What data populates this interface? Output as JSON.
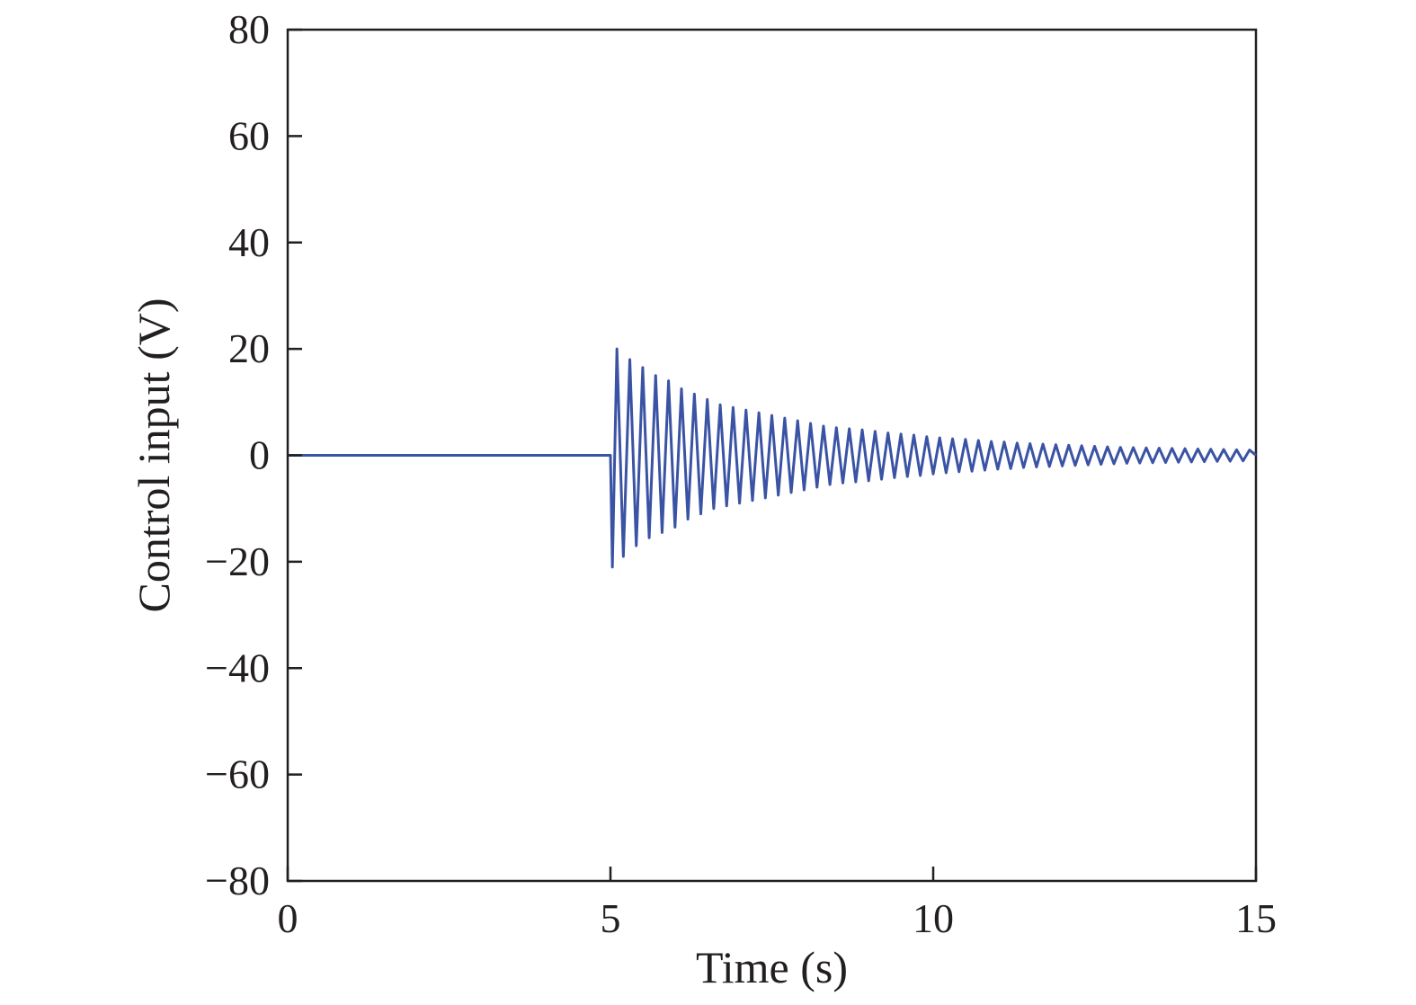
{
  "chart_data": {
    "type": "line",
    "xlabel": "Time (s)",
    "ylabel": "Control input (V)",
    "xlim": [
      0,
      15
    ],
    "ylim": [
      -80,
      80
    ],
    "xticks": [
      0,
      5,
      10,
      15
    ],
    "xtick_labels": [
      "0",
      "5",
      "10",
      "15"
    ],
    "yticks": [
      80,
      60,
      40,
      20,
      0,
      -20,
      -40,
      -60,
      -80
    ],
    "ytick_labels": [
      "80",
      "60",
      "40",
      "20",
      "0",
      "−20",
      "−40",
      "−60",
      "−80"
    ],
    "grid": false,
    "legend": null,
    "colors": {
      "line": "#3a53a4",
      "axes": "#231f20"
    },
    "series": [
      {
        "x": [
          0,
          5.0,
          5.03,
          5.1,
          5.2,
          5.3,
          5.4,
          5.5,
          5.6,
          5.7,
          5.8,
          5.9,
          6.0,
          6.1,
          6.2,
          6.3,
          6.4,
          6.5,
          6.6,
          6.7,
          6.8,
          6.9,
          7.0,
          7.1,
          7.2,
          7.3,
          7.4,
          7.5,
          7.6,
          7.7,
          7.8,
          7.9,
          8.0,
          8.1,
          8.2,
          8.3,
          8.4,
          8.5,
          8.6,
          8.7,
          8.8,
          8.9,
          9.0,
          9.1,
          9.2,
          9.3,
          9.4,
          9.5,
          9.6,
          9.7,
          9.8,
          9.9,
          10.0,
          10.1,
          10.2,
          10.3,
          10.4,
          10.5,
          10.6,
          10.7,
          10.8,
          10.9,
          11.0,
          11.1,
          11.2,
          11.3,
          11.4,
          11.5,
          11.6,
          11.7,
          11.8,
          11.9,
          12.0,
          12.1,
          12.2,
          12.3,
          12.4,
          12.5,
          12.6,
          12.7,
          12.8,
          12.9,
          13.0,
          13.1,
          13.2,
          13.3,
          13.4,
          13.5,
          13.6,
          13.7,
          13.8,
          13.9,
          14.0,
          14.1,
          14.2,
          14.3,
          14.4,
          14.5,
          14.6,
          14.7,
          14.8,
          14.9,
          15.0
        ],
        "y": [
          0,
          0,
          -21,
          20,
          -19,
          18,
          -17,
          16.5,
          -15.5,
          15,
          -14.5,
          14,
          -13.5,
          12.5,
          -12,
          11.5,
          -11,
          10.5,
          -10,
          9.5,
          -9.5,
          9,
          -9,
          8.5,
          -8.5,
          8,
          -8,
          7.5,
          -7.5,
          7,
          -7,
          6.5,
          -6.5,
          6,
          -6,
          5.5,
          -5.5,
          5.2,
          -5.2,
          5,
          -5,
          4.8,
          -4.8,
          4.5,
          -4.5,
          4.2,
          -4.2,
          4,
          -4,
          3.8,
          -3.8,
          3.5,
          -3.5,
          3.3,
          -3.3,
          3.1,
          -3.1,
          3,
          -3,
          2.8,
          -2.8,
          2.6,
          -2.6,
          2.5,
          -2.5,
          2.3,
          -2.3,
          2.2,
          -2.2,
          2.1,
          -2.1,
          2,
          -2,
          1.9,
          -1.9,
          1.8,
          -1.8,
          1.7,
          -1.7,
          1.6,
          -1.6,
          1.5,
          -1.5,
          1.45,
          -1.45,
          1.4,
          -1.4,
          1.35,
          -1.35,
          1.3,
          -1.3,
          1.25,
          -1.25,
          1.2,
          -1.2,
          1.15,
          -1.15,
          1.1,
          -1.1,
          1.05,
          -1.05,
          1.0,
          0
        ]
      }
    ]
  }
}
